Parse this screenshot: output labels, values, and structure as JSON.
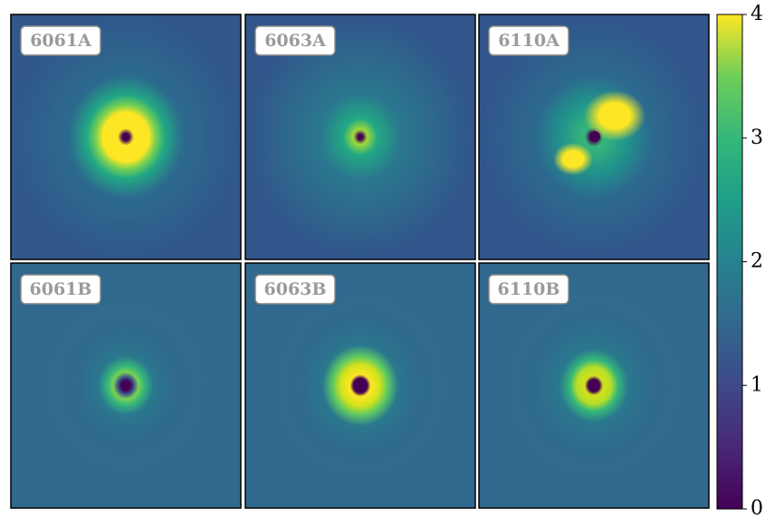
{
  "panels": [
    {
      "label": "6061A"
    },
    {
      "label": "6063A"
    },
    {
      "label": "6110A"
    },
    {
      "label": "6061B"
    },
    {
      "label": "6063B"
    },
    {
      "label": "6110B"
    }
  ],
  "colorbar": {
    "lim": [
      0,
      4
    ],
    "ticks": [
      0,
      1,
      2,
      3,
      4
    ]
  }
}
